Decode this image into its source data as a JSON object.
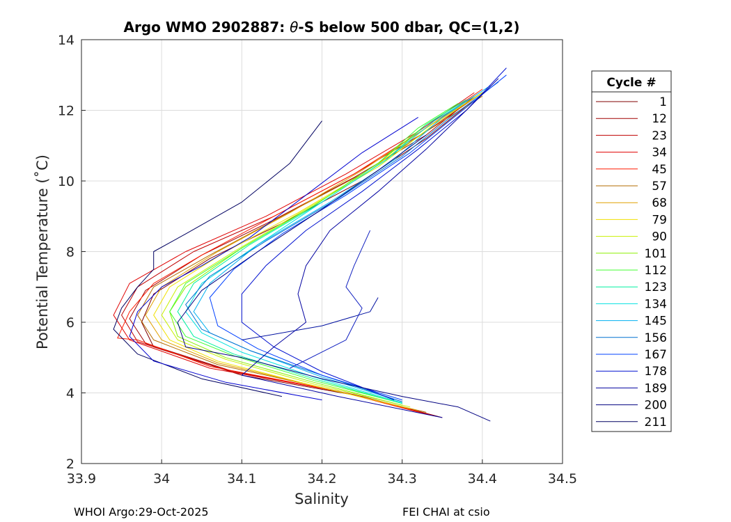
{
  "chart_data": {
    "type": "line",
    "title_prefix": "Argo WMO 2902887: ",
    "title_theta": "θ",
    "title_suffix": "-S below 500 dbar,  QC=(1,2)",
    "xlabel": "Salinity",
    "ylabel": "Potential Temperature (˚C)",
    "xlim": [
      33.9,
      34.5
    ],
    "ylim": [
      2,
      14
    ],
    "xticks": [
      "33.9",
      "34",
      "34.1",
      "34.2",
      "34.3",
      "34.4",
      "34.5"
    ],
    "yticks": [
      "2",
      "4",
      "6",
      "8",
      "10",
      "12",
      "14"
    ],
    "grid": true,
    "legend": {
      "title": "Cycle #",
      "placement": "right",
      "entries": [
        {
          "label": "1",
          "color": "#800000"
        },
        {
          "label": "12",
          "color": "#a00000"
        },
        {
          "label": "23",
          "color": "#c00000"
        },
        {
          "label": "34",
          "color": "#e00000"
        },
        {
          "label": "45",
          "color": "#ff1a00"
        },
        {
          "label": "57",
          "color": "#b36b00"
        },
        {
          "label": "68",
          "color": "#e0a000"
        },
        {
          "label": "79",
          "color": "#f0e000"
        },
        {
          "label": "90",
          "color": "#c8f000"
        },
        {
          "label": "101",
          "color": "#8cf000"
        },
        {
          "label": "112",
          "color": "#40ff30"
        },
        {
          "label": "123",
          "color": "#00f0a0"
        },
        {
          "label": "134",
          "color": "#00e0e0"
        },
        {
          "label": "145",
          "color": "#00b0f0"
        },
        {
          "label": "156",
          "color": "#0070d0"
        },
        {
          "label": "167",
          "color": "#0040ff"
        },
        {
          "label": "178",
          "color": "#0010d0"
        },
        {
          "label": "189",
          "color": "#0000a0"
        },
        {
          "label": "200",
          "color": "#000080"
        },
        {
          "label": "211",
          "color": "#000060"
        }
      ]
    },
    "series": [
      {
        "name": "cycle-1",
        "color": "#800000",
        "points": [
          [
            34.35,
            3.3
          ],
          [
            34.25,
            3.9
          ],
          [
            34.1,
            4.5
          ],
          [
            33.99,
            5.3
          ],
          [
            33.975,
            6.0
          ],
          [
            33.99,
            6.8
          ],
          [
            34.06,
            7.8
          ],
          [
            34.15,
            8.8
          ],
          [
            34.25,
            10.0
          ],
          [
            34.33,
            11.2
          ],
          [
            34.39,
            12.3
          ]
        ]
      },
      {
        "name": "cycle-12",
        "color": "#a00000",
        "points": [
          [
            34.34,
            3.35
          ],
          [
            34.24,
            3.95
          ],
          [
            34.09,
            4.6
          ],
          [
            33.98,
            5.4
          ],
          [
            33.96,
            6.1
          ],
          [
            33.98,
            6.9
          ],
          [
            34.05,
            7.9
          ],
          [
            34.14,
            8.9
          ],
          [
            34.24,
            10.1
          ],
          [
            34.33,
            11.3
          ],
          [
            34.39,
            12.4
          ]
        ]
      },
      {
        "name": "cycle-23",
        "color": "#c00000",
        "points": [
          [
            34.34,
            3.35
          ],
          [
            34.23,
            4.0
          ],
          [
            34.08,
            4.65
          ],
          [
            33.97,
            5.45
          ],
          [
            33.95,
            6.2
          ],
          [
            33.97,
            7.0
          ],
          [
            34.04,
            8.0
          ],
          [
            34.14,
            9.0
          ],
          [
            34.24,
            10.2
          ],
          [
            34.33,
            11.4
          ],
          [
            34.4,
            12.5
          ]
        ]
      },
      {
        "name": "cycle-34",
        "color": "#e00000",
        "points": [
          [
            34.34,
            3.35
          ],
          [
            34.22,
            4.05
          ],
          [
            34.06,
            4.7
          ],
          [
            33.96,
            5.5
          ],
          [
            33.94,
            6.2
          ],
          [
            33.96,
            7.1
          ],
          [
            34.03,
            8.0
          ],
          [
            34.13,
            9.0
          ],
          [
            34.23,
            10.2
          ],
          [
            34.32,
            11.4
          ],
          [
            34.39,
            12.5
          ]
        ]
      },
      {
        "name": "cycle-45",
        "color": "#ff1a00",
        "points": [
          [
            34.33,
            3.4
          ],
          [
            34.22,
            4.05
          ],
          [
            34.06,
            4.75
          ],
          [
            33.97,
            5.5
          ],
          [
            33.945,
            5.55
          ],
          [
            33.96,
            6.3
          ],
          [
            33.99,
            7.1
          ],
          [
            34.05,
            7.9
          ],
          [
            34.14,
            9.0
          ],
          [
            34.24,
            10.2
          ],
          [
            34.33,
            11.5
          ],
          [
            34.4,
            12.6
          ]
        ]
      },
      {
        "name": "cycle-57",
        "color": "#b36b00",
        "points": [
          [
            34.33,
            3.45
          ],
          [
            34.21,
            4.1
          ],
          [
            34.07,
            4.8
          ],
          [
            33.99,
            5.5
          ],
          [
            33.97,
            6.2
          ],
          [
            33.99,
            7.0
          ],
          [
            34.06,
            7.9
          ],
          [
            34.15,
            9.0
          ],
          [
            34.25,
            10.2
          ],
          [
            34.33,
            11.4
          ],
          [
            34.4,
            12.4
          ]
        ]
      },
      {
        "name": "cycle-68",
        "color": "#e0a000",
        "points": [
          [
            34.32,
            3.5
          ],
          [
            34.2,
            4.15
          ],
          [
            34.07,
            4.85
          ],
          [
            34.0,
            5.5
          ],
          [
            33.98,
            6.2
          ],
          [
            34.0,
            7.0
          ],
          [
            34.07,
            8.0
          ],
          [
            34.16,
            9.1
          ],
          [
            34.25,
            10.3
          ],
          [
            34.33,
            11.5
          ],
          [
            34.4,
            12.5
          ]
        ]
      },
      {
        "name": "cycle-79",
        "color": "#f0e000",
        "points": [
          [
            34.31,
            3.55
          ],
          [
            34.19,
            4.2
          ],
          [
            34.07,
            4.9
          ],
          [
            34.01,
            5.5
          ],
          [
            33.99,
            6.2
          ],
          [
            34.01,
            7.0
          ],
          [
            34.08,
            8.0
          ],
          [
            34.17,
            9.1
          ],
          [
            34.26,
            10.3
          ],
          [
            34.33,
            11.5
          ],
          [
            34.39,
            12.4
          ]
        ]
      },
      {
        "name": "cycle-90",
        "color": "#c8f000",
        "points": [
          [
            34.31,
            3.6
          ],
          [
            34.19,
            4.25
          ],
          [
            34.08,
            4.95
          ],
          [
            34.02,
            5.5
          ],
          [
            34.0,
            6.2
          ],
          [
            34.02,
            7.0
          ],
          [
            34.09,
            8.0
          ],
          [
            34.18,
            9.2
          ],
          [
            34.27,
            10.4
          ],
          [
            34.34,
            11.6
          ],
          [
            34.4,
            12.5
          ]
        ]
      },
      {
        "name": "cycle-101",
        "color": "#8cf000",
        "points": [
          [
            34.3,
            3.65
          ],
          [
            34.19,
            4.3
          ],
          [
            34.08,
            5.0
          ],
          [
            34.02,
            5.6
          ],
          [
            34.01,
            6.3
          ],
          [
            34.03,
            7.0
          ],
          [
            34.1,
            8.1
          ],
          [
            34.19,
            9.3
          ],
          [
            34.27,
            10.5
          ],
          [
            34.33,
            11.6
          ],
          [
            34.38,
            12.3
          ]
        ]
      },
      {
        "name": "cycle-112",
        "color": "#40ff30",
        "points": [
          [
            34.3,
            3.7
          ],
          [
            34.19,
            4.35
          ],
          [
            34.09,
            5.05
          ],
          [
            34.03,
            5.6
          ],
          [
            34.01,
            6.3
          ],
          [
            34.03,
            7.1
          ],
          [
            34.1,
            8.1
          ],
          [
            34.19,
            9.3
          ],
          [
            34.27,
            10.5
          ],
          [
            34.32,
            11.5
          ],
          [
            34.37,
            12.2
          ]
        ]
      },
      {
        "name": "cycle-123",
        "color": "#00f0a0",
        "points": [
          [
            34.3,
            3.7
          ],
          [
            34.19,
            4.4
          ],
          [
            34.09,
            5.1
          ],
          [
            34.04,
            5.6
          ],
          [
            34.02,
            6.3
          ],
          [
            34.04,
            7.1
          ],
          [
            34.11,
            8.2
          ],
          [
            34.2,
            9.4
          ],
          [
            34.28,
            10.6
          ],
          [
            34.33,
            11.6
          ],
          [
            34.38,
            12.3
          ]
        ]
      },
      {
        "name": "cycle-134",
        "color": "#00e0e0",
        "points": [
          [
            34.3,
            3.72
          ],
          [
            34.19,
            4.45
          ],
          [
            34.1,
            5.15
          ],
          [
            34.05,
            5.7
          ],
          [
            34.03,
            6.3
          ],
          [
            34.05,
            7.1
          ],
          [
            34.12,
            8.2
          ],
          [
            34.2,
            9.4
          ],
          [
            34.28,
            10.6
          ],
          [
            34.34,
            11.7
          ],
          [
            34.39,
            12.4
          ]
        ]
      },
      {
        "name": "cycle-145",
        "color": "#00b0f0",
        "points": [
          [
            34.3,
            3.75
          ],
          [
            34.2,
            4.45
          ],
          [
            34.11,
            5.2
          ],
          [
            34.06,
            5.7
          ],
          [
            34.04,
            6.3
          ],
          [
            34.06,
            7.1
          ],
          [
            34.12,
            8.2
          ],
          [
            34.21,
            9.4
          ],
          [
            34.29,
            10.6
          ],
          [
            34.35,
            11.8
          ],
          [
            34.41,
            12.7
          ]
        ]
      },
      {
        "name": "cycle-156",
        "color": "#0070d0",
        "points": [
          [
            34.3,
            3.75
          ],
          [
            34.2,
            4.5
          ],
          [
            34.11,
            5.2
          ],
          [
            34.05,
            5.8
          ],
          [
            34.03,
            6.5
          ],
          [
            34.06,
            7.3
          ],
          [
            34.13,
            8.3
          ],
          [
            34.22,
            9.5
          ],
          [
            34.3,
            10.7
          ],
          [
            34.36,
            11.8
          ],
          [
            34.42,
            12.8
          ]
        ]
      },
      {
        "name": "cycle-167",
        "color": "#0040ff",
        "points": [
          [
            34.3,
            3.8
          ],
          [
            34.2,
            4.5
          ],
          [
            34.12,
            5.25
          ],
          [
            34.07,
            5.9
          ],
          [
            34.06,
            6.7
          ],
          [
            34.09,
            7.5
          ],
          [
            34.15,
            8.5
          ],
          [
            34.23,
            9.6
          ],
          [
            34.31,
            10.8
          ],
          [
            34.37,
            11.9
          ],
          [
            34.43,
            13.0
          ]
        ]
      },
      {
        "name": "cycle-178",
        "color": "#0010d0",
        "points": [
          [
            34.29,
            3.8
          ],
          [
            34.2,
            4.6
          ],
          [
            34.14,
            5.3
          ],
          [
            34.1,
            6.0
          ],
          [
            34.1,
            6.8
          ],
          [
            34.13,
            7.6
          ],
          [
            34.18,
            8.6
          ],
          [
            34.25,
            9.7
          ],
          [
            34.32,
            10.9
          ],
          [
            34.38,
            12.0
          ],
          [
            34.43,
            13.2
          ]
        ]
      },
      {
        "name": "cycle-189",
        "color": "#0000a0",
        "points": [
          [
            34.35,
            3.3
          ],
          [
            34.22,
            3.9
          ],
          [
            34.1,
            4.5
          ],
          [
            34.14,
            5.3
          ],
          [
            34.18,
            6.0
          ],
          [
            34.17,
            6.8
          ],
          [
            34.18,
            7.6
          ],
          [
            34.21,
            8.6
          ],
          [
            34.27,
            9.7
          ],
          [
            34.33,
            10.9
          ],
          [
            34.38,
            12.0
          ],
          [
            34.42,
            12.9
          ]
        ]
      },
      {
        "name": "cycle-200",
        "color": "#000080",
        "points": [
          [
            34.41,
            3.2
          ],
          [
            34.37,
            3.6
          ],
          [
            34.3,
            3.9
          ],
          [
            34.2,
            4.4
          ],
          [
            34.1,
            5.0
          ],
          [
            34.03,
            5.3
          ],
          [
            34.02,
            6.0
          ],
          [
            34.05,
            6.9
          ],
          [
            34.12,
            8.0
          ],
          [
            34.2,
            9.2
          ],
          [
            34.27,
            10.3
          ],
          [
            34.33,
            11.3
          ]
        ]
      },
      {
        "name": "cycle-211-a",
        "color": "#000060",
        "points": [
          [
            34.15,
            3.9
          ],
          [
            34.05,
            4.4
          ],
          [
            33.97,
            5.1
          ],
          [
            33.94,
            5.8
          ],
          [
            33.95,
            6.4
          ],
          [
            33.97,
            7.0
          ],
          [
            33.99,
            7.5
          ],
          [
            33.99,
            8.0
          ],
          [
            34.03,
            8.5
          ],
          [
            34.1,
            9.4
          ],
          [
            34.16,
            10.5
          ],
          [
            34.2,
            11.7
          ]
        ]
      },
      {
        "name": "cycle-211-b",
        "color": "#0000d0",
        "points": [
          [
            34.2,
            3.8
          ],
          [
            34.08,
            4.3
          ],
          [
            33.99,
            4.9
          ],
          [
            33.96,
            5.6
          ],
          [
            33.97,
            6.3
          ],
          [
            34.0,
            7.0
          ],
          [
            34.05,
            7.6
          ],
          [
            34.11,
            8.4
          ],
          [
            34.18,
            9.6
          ],
          [
            34.25,
            10.8
          ],
          [
            34.32,
            11.8
          ]
        ]
      },
      {
        "name": "cycle-211-c",
        "color": "#1020c0",
        "points": [
          [
            34.16,
            4.7
          ],
          [
            34.23,
            5.5
          ],
          [
            34.25,
            6.4
          ],
          [
            34.23,
            7.0
          ],
          [
            34.24,
            7.6
          ],
          [
            34.25,
            8.1
          ],
          [
            34.26,
            8.6
          ]
        ]
      },
      {
        "name": "cycle-211-d",
        "color": "#0010a0",
        "points": [
          [
            34.1,
            5.5
          ],
          [
            34.2,
            5.9
          ],
          [
            34.26,
            6.3
          ],
          [
            34.27,
            6.7
          ]
        ]
      }
    ]
  },
  "footer": {
    "left": "WHOI Argo:29-Oct-2025",
    "right": "FEI CHAI at csio"
  }
}
